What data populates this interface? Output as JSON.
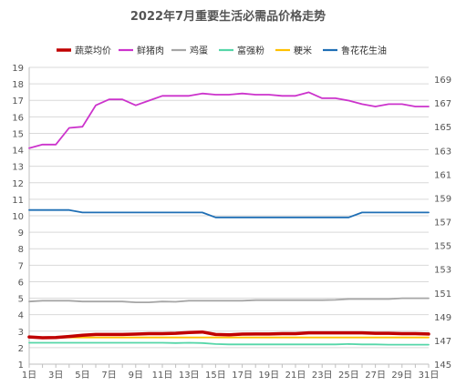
{
  "chart_data": {
    "type": "line",
    "title": "2022年7月重要生活必需品价格走势",
    "categories": [
      "1日",
      "2日",
      "3日",
      "4日",
      "5日",
      "6日",
      "7日",
      "8日",
      "9日",
      "10日",
      "11日",
      "12日",
      "13日",
      "14日",
      "15日",
      "16日",
      "17日",
      "18日",
      "19日",
      "20日",
      "21日",
      "22日",
      "23日",
      "24日",
      "25日",
      "26日",
      "27日",
      "28日",
      "29日",
      "30日",
      "31日"
    ],
    "x_tick_labels": [
      "1日",
      "3日",
      "5日",
      "7日",
      "9日",
      "11日",
      "13日",
      "15日",
      "17日",
      "19日",
      "21日",
      "23日",
      "25日",
      "27日",
      "29日",
      "31日"
    ],
    "ylim": [
      1,
      19
    ],
    "y_ticks": [
      1,
      2,
      3,
      4,
      5,
      6,
      7,
      8,
      9,
      10,
      11,
      12,
      13,
      14,
      15,
      16,
      17,
      18,
      19
    ],
    "y2lim": [
      145,
      170
    ],
    "y2_ticks": [
      145,
      147,
      149,
      151,
      153,
      155,
      157,
      159,
      161,
      163,
      165,
      167,
      169
    ],
    "grid": true,
    "legend_position": "top",
    "series": [
      {
        "name": "蔬菜均价",
        "axis": "left",
        "color": "#c00000",
        "width": 3.5,
        "values": [
          2.65,
          2.6,
          2.62,
          2.68,
          2.75,
          2.8,
          2.8,
          2.8,
          2.82,
          2.85,
          2.85,
          2.87,
          2.92,
          2.95,
          2.8,
          2.78,
          2.82,
          2.83,
          2.83,
          2.85,
          2.85,
          2.9,
          2.9,
          2.9,
          2.9,
          2.9,
          2.87,
          2.87,
          2.85,
          2.85,
          2.83
        ]
      },
      {
        "name": "鲜猪肉",
        "axis": "right",
        "color": "#cc33cc",
        "width": 1.8,
        "values": [
          163.2,
          163.5,
          163.5,
          164.9,
          165,
          166.8,
          167.3,
          167.3,
          166.8,
          167.2,
          167.6,
          167.6,
          167.6,
          167.8,
          167.7,
          167.7,
          167.8,
          167.7,
          167.7,
          167.6,
          167.6,
          167.9,
          167.4,
          167.4,
          167.2,
          166.9,
          166.7,
          166.9,
          166.9,
          166.7,
          166.7
        ]
      },
      {
        "name": "鸡蛋",
        "axis": "left",
        "color": "#a6a6a6",
        "width": 1.8,
        "values": [
          4.8,
          4.85,
          4.85,
          4.85,
          4.8,
          4.8,
          4.8,
          4.8,
          4.75,
          4.75,
          4.8,
          4.78,
          4.85,
          4.85,
          4.85,
          4.85,
          4.85,
          4.88,
          4.88,
          4.88,
          4.88,
          4.88,
          4.88,
          4.9,
          4.95,
          4.95,
          4.95,
          4.95,
          5.0,
          5.0,
          5.0
        ]
      },
      {
        "name": "富强粉",
        "axis": "left",
        "color": "#55d6a8",
        "width": 1.8,
        "values": [
          2.3,
          2.3,
          2.3,
          2.3,
          2.3,
          2.3,
          2.3,
          2.3,
          2.3,
          2.3,
          2.3,
          2.28,
          2.3,
          2.28,
          2.22,
          2.2,
          2.2,
          2.2,
          2.2,
          2.2,
          2.2,
          2.2,
          2.2,
          2.2,
          2.22,
          2.2,
          2.2,
          2.18,
          2.18,
          2.18,
          2.18
        ]
      },
      {
        "name": "粳米",
        "axis": "left",
        "color": "#ffc000",
        "width": 1.8,
        "values": [
          2.62,
          2.62,
          2.62,
          2.62,
          2.62,
          2.62,
          2.62,
          2.62,
          2.62,
          2.62,
          2.62,
          2.62,
          2.62,
          2.62,
          2.62,
          2.62,
          2.62,
          2.62,
          2.62,
          2.62,
          2.62,
          2.62,
          2.62,
          2.62,
          2.62,
          2.62,
          2.62,
          2.62,
          2.62,
          2.62,
          2.62
        ]
      },
      {
        "name": "鲁花花生油",
        "axis": "left",
        "color": "#1f6fb5",
        "width": 1.8,
        "values": [
          10.35,
          10.35,
          10.35,
          10.35,
          10.2,
          10.2,
          10.2,
          10.2,
          10.2,
          10.2,
          10.2,
          10.2,
          10.2,
          10.2,
          9.9,
          9.9,
          9.9,
          9.9,
          9.9,
          9.9,
          9.9,
          9.9,
          9.9,
          9.9,
          9.9,
          10.2,
          10.2,
          10.2,
          10.2,
          10.2,
          10.2
        ]
      }
    ]
  }
}
